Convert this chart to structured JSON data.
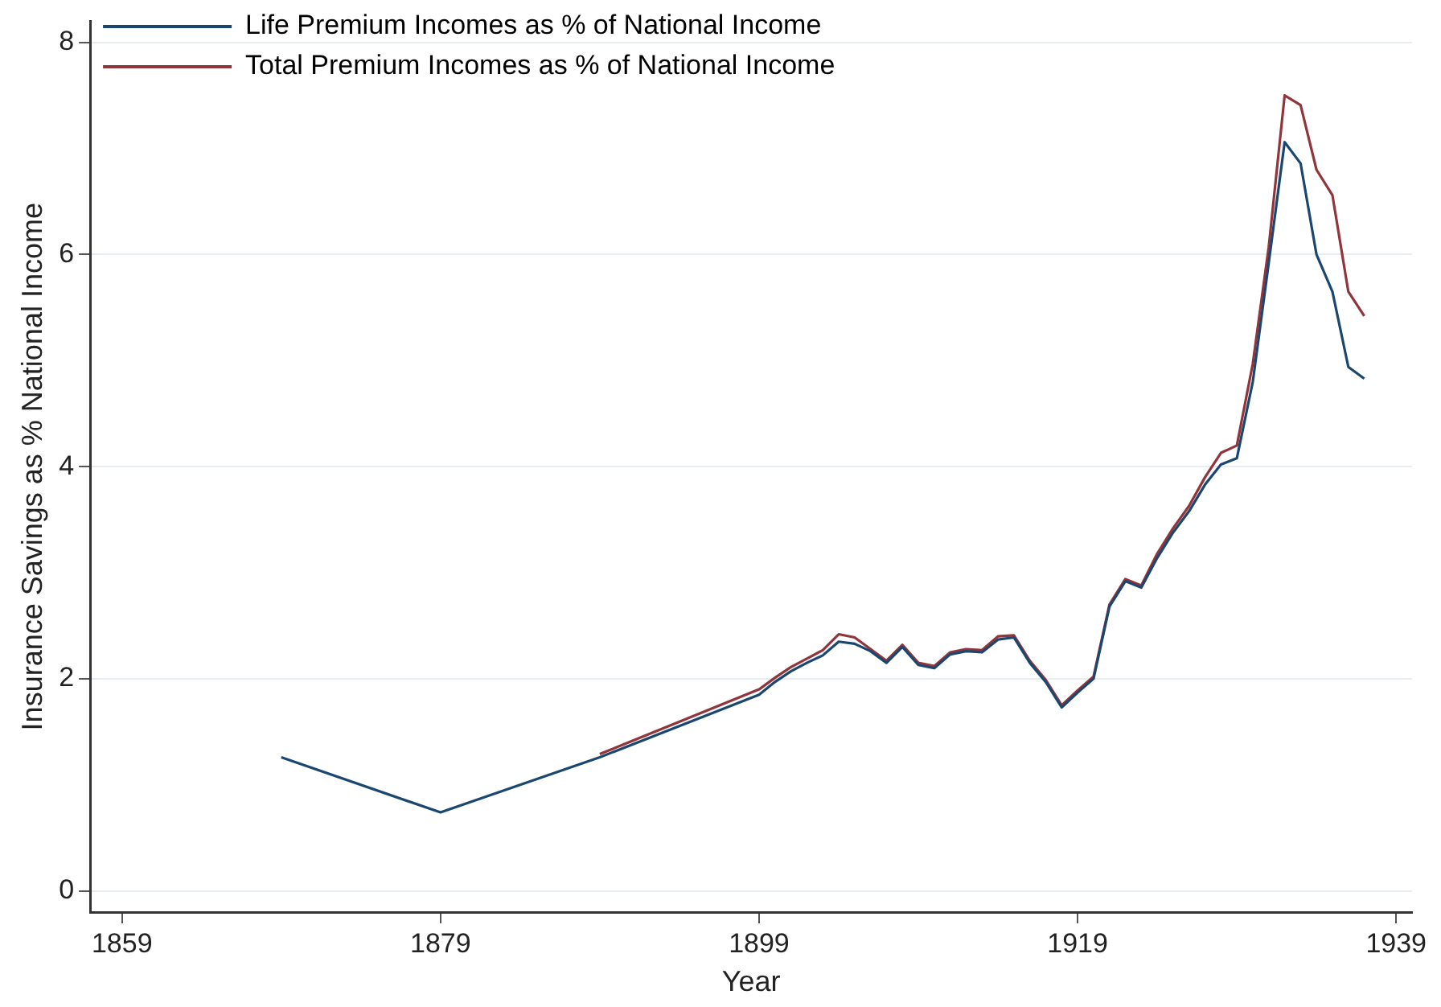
{
  "chart_data": {
    "type": "line",
    "xlabel": "Year",
    "ylabel": "Insurance Savings as % National Income",
    "xlim": [
      1857,
      1940
    ],
    "xticks": [
      1859,
      1879,
      1899,
      1919,
      1939
    ],
    "ylim": [
      -0.2,
      8.2
    ],
    "yticks": [
      0,
      2,
      4,
      6,
      8
    ],
    "grid": "y",
    "legend": "top left",
    "marker": "none",
    "line_style": "solid",
    "series": [
      {
        "name": "Life Premium Incomes as % of National Income",
        "color": "#1a476f",
        "x": [
          1869,
          1879,
          1889,
          1899,
          1900,
          1901,
          1902,
          1903,
          1904,
          1905,
          1906,
          1907,
          1908,
          1909,
          1910,
          1911,
          1912,
          1913,
          1914,
          1915,
          1916,
          1917,
          1918,
          1919,
          1920,
          1921,
          1922,
          1923,
          1924,
          1925,
          1926,
          1927,
          1928,
          1929,
          1930,
          1931,
          1932,
          1933,
          1934,
          1935,
          1936,
          1937
        ],
        "values": [
          1.26,
          0.74,
          1.26,
          1.85,
          1.97,
          2.07,
          2.15,
          2.22,
          2.35,
          2.33,
          2.26,
          2.15,
          2.3,
          2.13,
          2.1,
          2.23,
          2.26,
          2.25,
          2.37,
          2.39,
          2.15,
          1.97,
          1.73,
          1.87,
          2.0,
          2.68,
          2.92,
          2.86,
          3.14,
          3.38,
          3.58,
          3.83,
          4.02,
          4.08,
          4.8,
          5.92,
          7.06,
          6.86,
          6.0,
          5.65,
          4.94,
          4.83
        ]
      },
      {
        "name": "Total Premium Incomes as % of National Income",
        "color": "#90353b",
        "x": [
          1889,
          1899,
          1900,
          1901,
          1902,
          1903,
          1904,
          1905,
          1906,
          1907,
          1908,
          1909,
          1910,
          1911,
          1912,
          1913,
          1914,
          1915,
          1916,
          1917,
          1918,
          1919,
          1920,
          1921,
          1922,
          1923,
          1924,
          1925,
          1926,
          1927,
          1928,
          1929,
          1930,
          1931,
          1932,
          1933,
          1934,
          1935,
          1936,
          1937
        ],
        "values": [
          1.29,
          1.9,
          2.01,
          2.11,
          2.19,
          2.27,
          2.42,
          2.39,
          2.28,
          2.17,
          2.32,
          2.15,
          2.12,
          2.25,
          2.28,
          2.27,
          2.4,
          2.41,
          2.17,
          1.99,
          1.75,
          1.89,
          2.02,
          2.7,
          2.94,
          2.88,
          3.18,
          3.42,
          3.63,
          3.9,
          4.13,
          4.2,
          4.97,
          6.07,
          7.5,
          7.41,
          6.8,
          6.56,
          5.65,
          5.42
        ]
      }
    ]
  }
}
